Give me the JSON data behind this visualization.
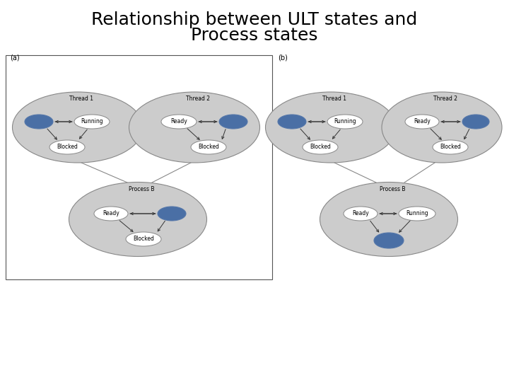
{
  "title_line1": "Relationship between ULT states and",
  "title_line2": "Process states",
  "title_fontsize": 18,
  "bg_color": "#ffffff",
  "label_a": "(a)",
  "label_b": "(b)",
  "outer_ellipse_color": "#cccccc",
  "inner_ellipse_fill": "#ffffff",
  "blue_fill": "#4a6fa5",
  "arrow_color": "#333333",
  "text_color": "#000000",
  "box_line_color": "#555555"
}
